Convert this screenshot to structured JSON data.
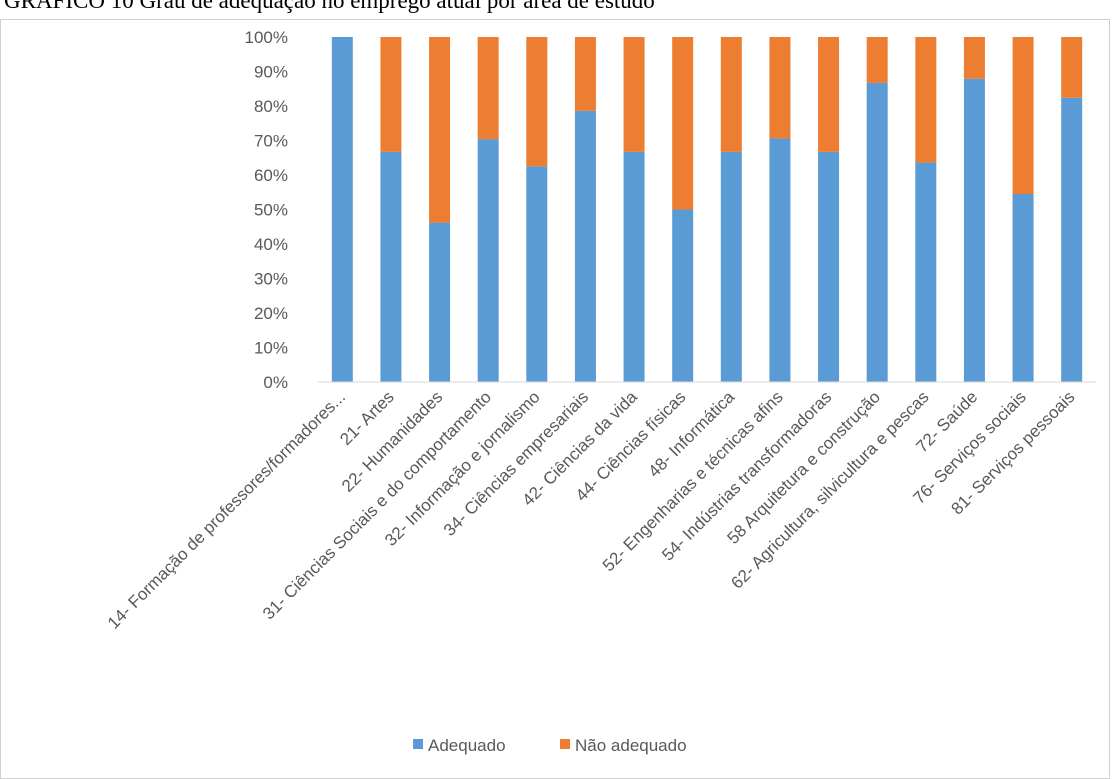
{
  "caption": "GRÁFICO 10 Grau de adequação no emprego atual por área de estudo",
  "chart_data": {
    "type": "bar",
    "stacked": true,
    "percent": true,
    "categories": [
      "14- Formação de professores/formadores...",
      "21- Artes",
      "22- Humanidades",
      "31- Ciências Sociais e do comportamento",
      "32- Informação e jornalismo",
      "34- Ciências empresariais",
      "42- Ciências da vida",
      "44- Ciências físicas",
      "48- Informática",
      "52- Engenharias e técnicas afins",
      "54- Indústrias transformadoras",
      "58 Arquitetura e construção",
      "62- Agricultura, silvicultura e pescas",
      "72- Saúde",
      "76- Serviços sociais",
      "81- Serviços pessoais"
    ],
    "series": [
      {
        "name": "Adequado",
        "color": "#5B9BD5",
        "values": [
          100,
          66.7,
          46.2,
          70.4,
          62.5,
          78.6,
          66.7,
          50,
          66.7,
          70.6,
          66.7,
          86.7,
          63.6,
          87.9,
          54.5,
          82.4
        ]
      },
      {
        "name": "Não adequado",
        "color": "#ED7D31",
        "values": [
          0,
          33.3,
          53.8,
          29.6,
          37.5,
          21.4,
          33.3,
          50,
          33.3,
          29.4,
          33.3,
          13.3,
          36.4,
          12.1,
          45.5,
          17.6
        ]
      }
    ],
    "y_ticks": [
      "0%",
      "10%",
      "20%",
      "30%",
      "40%",
      "50%",
      "60%",
      "70%",
      "80%",
      "90%",
      "100%"
    ],
    "ylim": [
      0,
      100
    ],
    "grid": false,
    "legend": "bottom"
  }
}
